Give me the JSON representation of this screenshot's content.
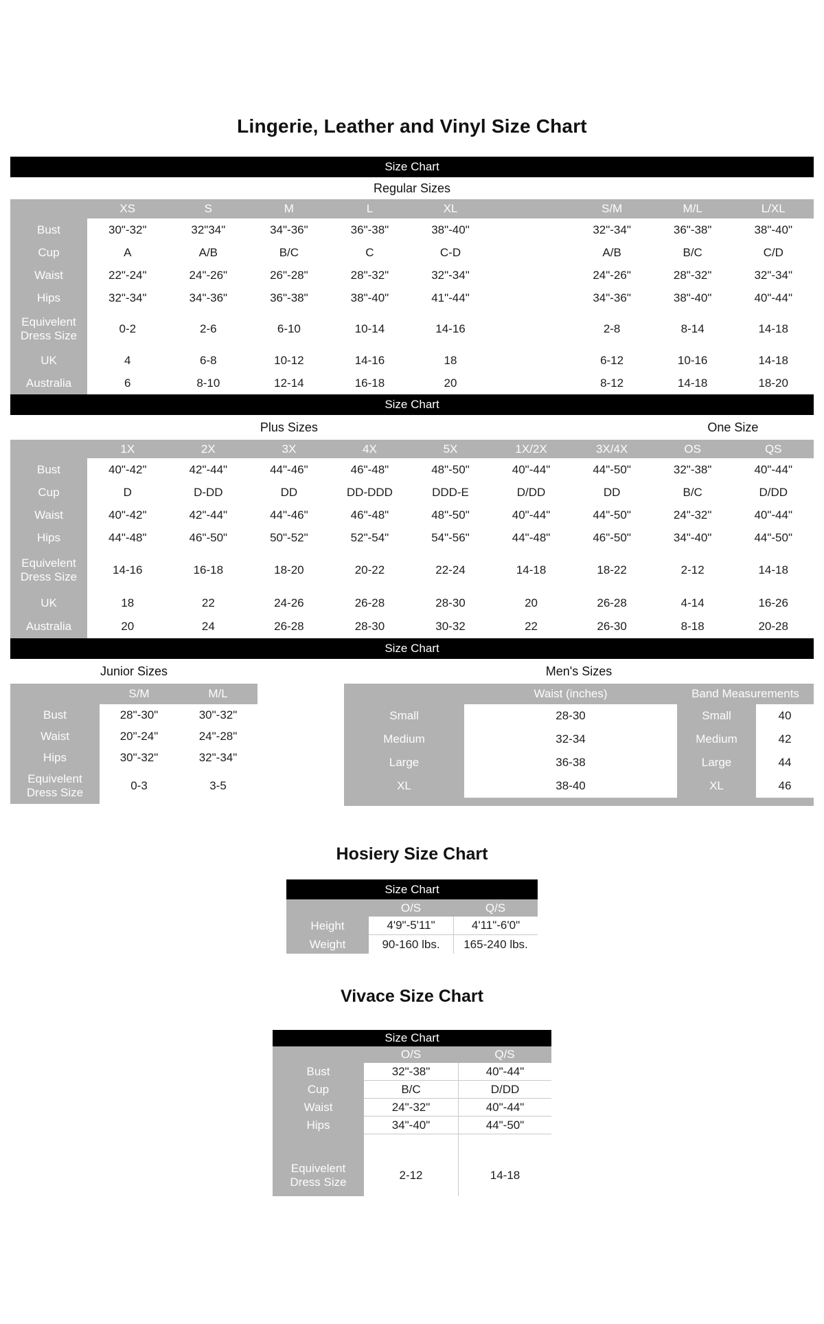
{
  "page_title": "Lingerie, Leather and Vinyl Size Chart",
  "bars": {
    "label": "Size Chart"
  },
  "colors": {
    "band_gray": "#b2b2b2",
    "bar_black": "#000000",
    "text": "#1c1c1c"
  },
  "regular": {
    "section_label": "Regular Sizes",
    "columns": [
      "XS",
      "S",
      "M",
      "L",
      "XL",
      "",
      "S/M",
      "M/L",
      "L/XL"
    ],
    "rows": [
      {
        "label": "Bust",
        "values": [
          "30\"-32\"",
          "32\"34\"",
          "34\"-36\"",
          "36\"-38\"",
          "38\"-40\"",
          "",
          "32\"-34\"",
          "36\"-38\"",
          "38\"-40\""
        ]
      },
      {
        "label": "Cup",
        "values": [
          "A",
          "A/B",
          "B/C",
          "C",
          "C-D",
          "",
          "A/B",
          "B/C",
          "C/D"
        ]
      },
      {
        "label": "Waist",
        "values": [
          "22\"-24\"",
          "24\"-26\"",
          "26\"-28\"",
          "28\"-32\"",
          "32\"-34\"",
          "",
          "24\"-26\"",
          "28\"-32\"",
          "32\"-34\""
        ]
      },
      {
        "label": "Hips",
        "values": [
          "32\"-34\"",
          "34\"-36\"",
          "36\"-38\"",
          "38\"-40\"",
          "41\"-44\"",
          "",
          "34\"-36\"",
          "38\"-40\"",
          "40\"-44\""
        ]
      },
      {
        "label": "Equivelent Dress Size",
        "values": [
          "0-2",
          "2-6",
          "6-10",
          "10-14",
          "14-16",
          "",
          "2-8",
          "8-14",
          "14-18"
        ]
      },
      {
        "label": "UK",
        "values": [
          "4",
          "6-8",
          "10-12",
          "14-16",
          "18",
          "",
          "6-12",
          "10-16",
          "14-18"
        ]
      },
      {
        "label": "Australia",
        "values": [
          "6",
          "8-10",
          "12-14",
          "16-18",
          "20",
          "",
          "8-12",
          "14-18",
          "18-20"
        ]
      }
    ]
  },
  "plus": {
    "section_label_left": "Plus Sizes",
    "section_label_right": "One Size",
    "columns": [
      "1X",
      "2X",
      "3X",
      "4X",
      "5X",
      "1X/2X",
      "3X/4X",
      "OS",
      "QS"
    ],
    "rows": [
      {
        "label": "Bust",
        "values": [
          "40\"-42\"",
          "42\"-44\"",
          "44\"-46\"",
          "46\"-48\"",
          "48\"-50\"",
          "40\"-44\"",
          "44\"-50\"",
          "32\"-38\"",
          "40\"-44\""
        ]
      },
      {
        "label": "Cup",
        "values": [
          "D",
          "D-DD",
          "DD",
          "DD-DDD",
          "DDD-E",
          "D/DD",
          "DD",
          "B/C",
          "D/DD"
        ]
      },
      {
        "label": "Waist",
        "values": [
          "40\"-42\"",
          "42\"-44\"",
          "44\"-46\"",
          "46\"-48\"",
          "48\"-50\"",
          "40\"-44\"",
          "44\"-50\"",
          "24\"-32\"",
          "40\"-44\""
        ]
      },
      {
        "label": "Hips",
        "values": [
          "44\"-48\"",
          "46\"-50\"",
          "50\"-52\"",
          "52\"-54\"",
          "54\"-56\"",
          "44\"-48\"",
          "46\"-50\"",
          "34\"-40\"",
          "44\"-50\""
        ]
      },
      {
        "label": "Equivelent Dress Size",
        "values": [
          "14-16",
          "16-18",
          "18-20",
          "20-22",
          "22-24",
          "14-18",
          "18-22",
          "2-12",
          "14-18"
        ]
      },
      {
        "label": "UK",
        "values": [
          "18",
          "22",
          "24-26",
          "26-28",
          "28-30",
          "20",
          "26-28",
          "4-14",
          "16-26"
        ]
      },
      {
        "label": "Australia",
        "values": [
          "20",
          "24",
          "26-28",
          "28-30",
          "30-32",
          "22",
          "26-30",
          "8-18",
          "20-28"
        ]
      }
    ]
  },
  "junior": {
    "section_label": "Junior Sizes",
    "columns": [
      "S/M",
      "M/L"
    ],
    "rows": [
      {
        "label": "Bust",
        "values": [
          "28\"-30\"",
          "30\"-32\""
        ]
      },
      {
        "label": "Waist",
        "values": [
          "20\"-24\"",
          "24\"-28\""
        ]
      },
      {
        "label": "Hips",
        "values": [
          "30\"-32\"",
          "32\"-34\""
        ]
      },
      {
        "label": "Equivelent Dress Size",
        "values": [
          "0-3",
          "3-5"
        ]
      }
    ]
  },
  "mens": {
    "section_label": "Men's Sizes",
    "waist_header": "Waist (inches)",
    "band_header": "Band Measurements",
    "rows": [
      {
        "size": "Small",
        "waist": "28-30",
        "band_size": "Small",
        "band": "40"
      },
      {
        "size": "Medium",
        "waist": "32-34",
        "band_size": "Medium",
        "band": "42"
      },
      {
        "size": "Large",
        "waist": "36-38",
        "band_size": "Large",
        "band": "44"
      },
      {
        "size": "XL",
        "waist": "38-40",
        "band_size": "XL",
        "band": "46"
      }
    ]
  },
  "hosiery": {
    "title": "Hosiery Size Chart",
    "columns": [
      "O/S",
      "Q/S"
    ],
    "rows": [
      {
        "label": "Height",
        "values": [
          "4'9\"-5'11\"",
          "4'11\"-6'0\""
        ]
      },
      {
        "label": "Weight",
        "values": [
          "90-160 lbs.",
          "165-240 lbs."
        ]
      }
    ]
  },
  "vivace": {
    "title": "Vivace Size Chart",
    "columns": [
      "O/S",
      "Q/S"
    ],
    "rows": [
      {
        "label": "Bust",
        "values": [
          "32\"-38\"",
          "40\"-44\""
        ]
      },
      {
        "label": "Cup",
        "values": [
          "B/C",
          "D/DD"
        ]
      },
      {
        "label": "Waist",
        "values": [
          "24\"-32\"",
          "40\"-44\""
        ]
      },
      {
        "label": "Hips",
        "values": [
          "34\"-40\"",
          "44\"-50\""
        ]
      },
      {
        "label": "Equivelent Dress Size",
        "values": [
          "2-12",
          "14-18"
        ]
      }
    ]
  }
}
